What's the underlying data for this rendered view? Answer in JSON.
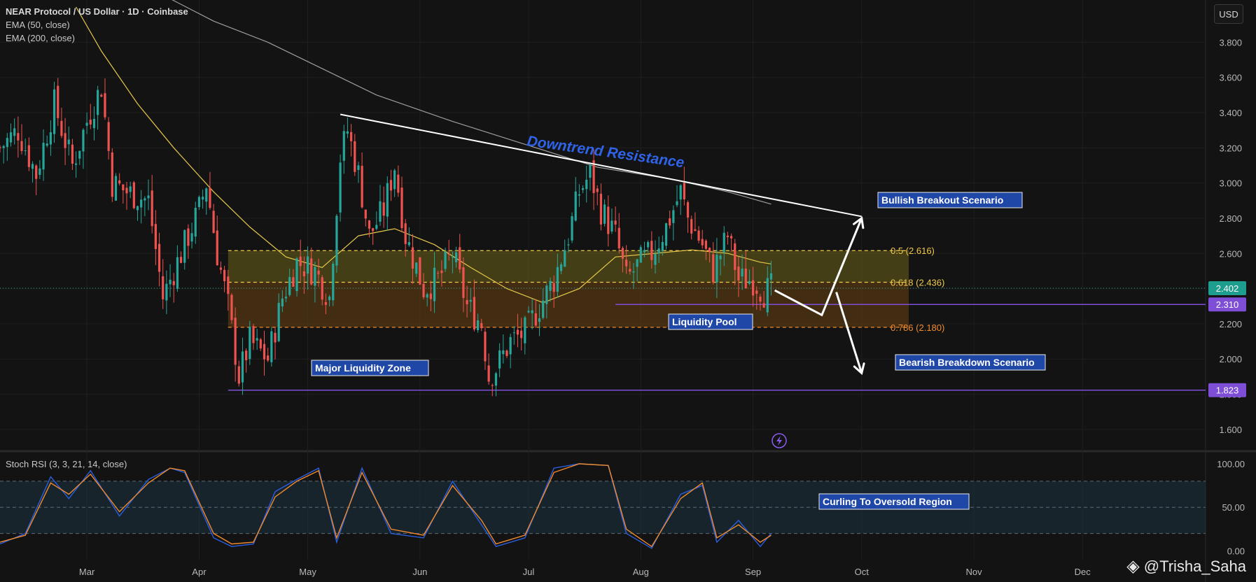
{
  "header": {
    "title": "NEAR Protocol / US Dollar · 1D · Coinbase",
    "ema50_label": "EMA (50, close)",
    "ema200_label": "EMA (200, close)",
    "currency": "USD"
  },
  "watermark": {
    "icon": "binance-diamond-icon",
    "text": "@Trisha_Saha"
  },
  "colors": {
    "background": "#131313",
    "up": "#26a69a",
    "down": "#ef5350",
    "ema50": "#e6c84a",
    "ema200": "#9e9e9e",
    "fib_05": "#f0c94a",
    "fib_0786": "#f08a2e",
    "purple": "#7e4fd6",
    "annotation_bg": "#1f47a8",
    "annotation_title": "#2f63e8",
    "stoch_k": "#2a5fe0",
    "stoch_d": "#f08a2e"
  },
  "annotations": {
    "downtrend": "Downtrend Resistance",
    "bullish": "Bullish Breakout Scenario",
    "bearish": "Bearish Breakdown Scenario",
    "liquidity_pool": "Liquidity Pool",
    "major_liquidity": "Major Liquidity Zone",
    "curling": "Curling To Oversold Region",
    "fib_05": "0.5 (2.616)",
    "fib_0618": "0.618 (2.436)",
    "fib_0786": "0.786 (2.180)",
    "price_current": "2.402",
    "price_2310": "2.310",
    "price_1823": "1.823"
  },
  "stoch": {
    "label": "Stoch RSI (3, 3, 21, 14, close)"
  },
  "chart_data": [
    {
      "type": "candlestick",
      "title": "NEAR Protocol / US Dollar · 1D · Coinbase",
      "x_ticks": [
        "Mar",
        "Apr",
        "May",
        "Jun",
        "Jul",
        "Aug",
        "Sep",
        "Oct",
        "Nov",
        "Dec"
      ],
      "x_tick_dates": [
        "2025-03-01",
        "2025-04-01",
        "2025-05-01",
        "2025-06-01",
        "2025-07-01",
        "2025-08-01",
        "2025-09-01",
        "2025-10-01",
        "2025-11-01",
        "2025-12-01"
      ],
      "y_ticks": [
        "1.600",
        "1.800",
        "2.000",
        "2.200",
        "2.400",
        "2.600",
        "2.800",
        "3.000",
        "3.200",
        "3.400",
        "3.600",
        "3.800"
      ],
      "ylim": [
        1.48,
        4.04
      ],
      "xlim": [
        "2025-02-05",
        "2026-01-04"
      ],
      "grid": true,
      "close_path": [
        [
          "2025-02-05",
          3.2
        ],
        [
          "2025-02-10",
          3.3
        ],
        [
          "2025-02-15",
          3.05
        ],
        [
          "2025-02-20",
          3.45
        ],
        [
          "2025-02-25",
          3.1
        ],
        [
          "2025-03-01",
          3.35
        ],
        [
          "2025-03-05",
          3.55
        ],
        [
          "2025-03-08",
          3.0
        ],
        [
          "2025-03-12",
          2.95
        ],
        [
          "2025-03-18",
          2.9
        ],
        [
          "2025-03-22",
          2.35
        ],
        [
          "2025-03-27",
          2.6
        ],
        [
          "2025-04-01",
          2.85
        ],
        [
          "2025-04-03",
          3.0
        ],
        [
          "2025-04-06",
          2.6
        ],
        [
          "2025-04-09",
          2.3
        ],
        [
          "2025-04-12",
          1.9
        ],
        [
          "2025-04-15",
          2.1
        ],
        [
          "2025-04-20",
          2.0
        ],
        [
          "2025-04-24",
          2.35
        ],
        [
          "2025-04-28",
          2.55
        ],
        [
          "2025-05-03",
          2.5
        ],
        [
          "2025-05-07",
          2.35
        ],
        [
          "2025-05-10",
          3.15
        ],
        [
          "2025-05-12",
          3.3
        ],
        [
          "2025-05-15",
          3.05
        ],
        [
          "2025-05-18",
          2.7
        ],
        [
          "2025-05-22",
          2.85
        ],
        [
          "2025-05-25",
          3.1
        ],
        [
          "2025-05-28",
          2.7
        ],
        [
          "2025-06-02",
          2.4
        ],
        [
          "2025-06-06",
          2.45
        ],
        [
          "2025-06-10",
          2.6
        ],
        [
          "2025-06-14",
          2.3
        ],
        [
          "2025-06-18",
          2.2
        ],
        [
          "2025-06-20",
          1.9
        ],
        [
          "2025-06-22",
          1.95
        ],
        [
          "2025-06-26",
          2.1
        ],
        [
          "2025-06-30",
          2.15
        ],
        [
          "2025-07-04",
          2.3
        ],
        [
          "2025-07-08",
          2.45
        ],
        [
          "2025-07-12",
          2.7
        ],
        [
          "2025-07-15",
          2.95
        ],
        [
          "2025-07-18",
          3.05
        ],
        [
          "2025-07-21",
          2.85
        ],
        [
          "2025-07-25",
          2.7
        ],
        [
          "2025-07-28",
          2.45
        ],
        [
          "2025-08-01",
          2.55
        ],
        [
          "2025-08-04",
          2.6
        ],
        [
          "2025-08-08",
          2.75
        ],
        [
          "2025-08-12",
          2.95
        ],
        [
          "2025-08-14",
          2.8
        ],
        [
          "2025-08-18",
          2.65
        ],
        [
          "2025-08-21",
          2.5
        ],
        [
          "2025-08-25",
          2.7
        ],
        [
          "2025-08-28",
          2.45
        ],
        [
          "2025-09-01",
          2.45
        ],
        [
          "2025-09-04",
          2.38
        ],
        [
          "2025-09-06",
          2.4
        ]
      ],
      "ema50_path": [
        [
          "2025-02-26",
          4.0
        ],
        [
          "2025-03-05",
          3.75
        ],
        [
          "2025-03-15",
          3.45
        ],
        [
          "2025-03-25",
          3.2
        ],
        [
          "2025-04-05",
          2.95
        ],
        [
          "2025-04-15",
          2.75
        ],
        [
          "2025-04-25",
          2.58
        ],
        [
          "2025-05-05",
          2.52
        ],
        [
          "2025-05-15",
          2.7
        ],
        [
          "2025-05-25",
          2.74
        ],
        [
          "2025-06-05",
          2.65
        ],
        [
          "2025-06-15",
          2.52
        ],
        [
          "2025-06-25",
          2.4
        ],
        [
          "2025-07-05",
          2.32
        ],
        [
          "2025-07-15",
          2.4
        ],
        [
          "2025-07-25",
          2.58
        ],
        [
          "2025-08-05",
          2.6
        ],
        [
          "2025-08-15",
          2.62
        ],
        [
          "2025-08-25",
          2.6
        ],
        [
          "2025-09-03",
          2.55
        ],
        [
          "2025-09-06",
          2.54
        ]
      ],
      "ema200_path": [
        [
          "2025-03-19",
          4.1
        ],
        [
          "2025-04-05",
          3.92
        ],
        [
          "2025-04-20",
          3.8
        ],
        [
          "2025-05-05",
          3.65
        ],
        [
          "2025-05-20",
          3.5
        ],
        [
          "2025-06-10",
          3.35
        ],
        [
          "2025-06-30",
          3.22
        ],
        [
          "2025-07-20",
          3.09
        ],
        [
          "2025-08-10",
          3.02
        ],
        [
          "2025-08-25",
          2.95
        ],
        [
          "2025-09-06",
          2.88
        ]
      ],
      "downtrend_line": [
        [
          "2025-05-10",
          3.39
        ],
        [
          "2025-10-01",
          2.81
        ]
      ],
      "fib_levels": [
        {
          "label": "0.5 (2.616)",
          "value": 2.616
        },
        {
          "label": "0.618 (2.436)",
          "value": 2.436
        },
        {
          "label": "0.786 (2.180)",
          "value": 2.18
        }
      ],
      "horizontal_lines": [
        {
          "value": 2.31,
          "from": "2025-07-25"
        },
        {
          "value": 1.823,
          "from": "2025-04-09"
        }
      ],
      "current_price": 2.402,
      "scenario_path_bull": [
        [
          "2025-09-07",
          2.39
        ],
        [
          "2025-09-20",
          2.25
        ],
        [
          "2025-10-01",
          2.8
        ]
      ],
      "scenario_path_bear": [
        [
          "2025-09-24",
          2.38
        ],
        [
          "2025-10-01",
          1.92
        ]
      ]
    },
    {
      "type": "line",
      "title": "Stoch RSI (3, 3, 21, 14, close)",
      "y_ticks": [
        "0.00",
        "50.00",
        "100.00"
      ],
      "ylim": [
        -10,
        112
      ],
      "bands": [
        20,
        50,
        80
      ],
      "series": [
        {
          "name": "K",
          "x": [
            "2025-02-05",
            "2025-02-12",
            "2025-02-19",
            "2025-02-24",
            "2025-03-02",
            "2025-03-10",
            "2025-03-18",
            "2025-03-24",
            "2025-03-28",
            "2025-04-05",
            "2025-04-10",
            "2025-04-16",
            "2025-04-22",
            "2025-04-28",
            "2025-05-04",
            "2025-05-09",
            "2025-05-16",
            "2025-05-24",
            "2025-06-02",
            "2025-06-10",
            "2025-06-18",
            "2025-06-22",
            "2025-06-30",
            "2025-07-08",
            "2025-07-15",
            "2025-07-23",
            "2025-07-28",
            "2025-08-04",
            "2025-08-12",
            "2025-08-18",
            "2025-08-22",
            "2025-08-28",
            "2025-09-03",
            "2025-09-06"
          ],
          "values": [
            8,
            20,
            85,
            60,
            92,
            40,
            82,
            95,
            90,
            15,
            5,
            8,
            68,
            82,
            95,
            10,
            95,
            20,
            15,
            80,
            30,
            5,
            15,
            95,
            100,
            98,
            20,
            3,
            65,
            75,
            10,
            35,
            5,
            20
          ]
        },
        {
          "name": "D",
          "x": [
            "2025-02-05",
            "2025-02-12",
            "2025-02-19",
            "2025-02-24",
            "2025-03-02",
            "2025-03-10",
            "2025-03-18",
            "2025-03-24",
            "2025-03-28",
            "2025-04-05",
            "2025-04-10",
            "2025-04-16",
            "2025-04-22",
            "2025-04-28",
            "2025-05-04",
            "2025-05-09",
            "2025-05-16",
            "2025-05-24",
            "2025-06-02",
            "2025-06-10",
            "2025-06-18",
            "2025-06-22",
            "2025-06-30",
            "2025-07-08",
            "2025-07-15",
            "2025-07-23",
            "2025-07-28",
            "2025-08-04",
            "2025-08-12",
            "2025-08-18",
            "2025-08-22",
            "2025-08-28",
            "2025-09-03",
            "2025-09-06"
          ],
          "values": [
            10,
            18,
            78,
            65,
            88,
            45,
            78,
            95,
            92,
            20,
            8,
            10,
            62,
            80,
            92,
            15,
            90,
            25,
            18,
            75,
            35,
            8,
            18,
            90,
            100,
            98,
            25,
            5,
            60,
            78,
            15,
            30,
            10,
            18
          ]
        }
      ]
    }
  ]
}
